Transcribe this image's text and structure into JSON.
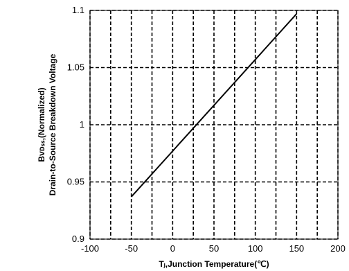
{
  "chart_data": {
    "type": "line",
    "xlabel": "Tⱼ,Junction Temperature(℃)",
    "ylabel_line1": "Bᴠᴅₛₛ,(Normalized)",
    "ylabel_line2": "Drain-to-Source Breakdown Voltage",
    "xlim": [
      -100,
      200
    ],
    "ylim": [
      0.9,
      1.1
    ],
    "x_ticks": [
      -100,
      -75,
      -50,
      -25,
      0,
      25,
      50,
      75,
      100,
      125,
      150,
      175,
      200
    ],
    "x_tick_labels": [
      "-100",
      "",
      "-50",
      "",
      "0",
      "",
      "50",
      "",
      "100",
      "",
      "150",
      "",
      "200"
    ],
    "y_ticks": [
      0.9,
      0.95,
      1.0,
      1.05,
      1.1
    ],
    "y_tick_labels": [
      "0.9",
      "0.95",
      "1",
      "1.05",
      "1.1"
    ],
    "grid": true,
    "grid_style": "dashed",
    "line_color": "#000000",
    "series": [
      {
        "x": [
          -50,
          150
        ],
        "y": [
          0.937,
          1.097
        ]
      }
    ]
  }
}
